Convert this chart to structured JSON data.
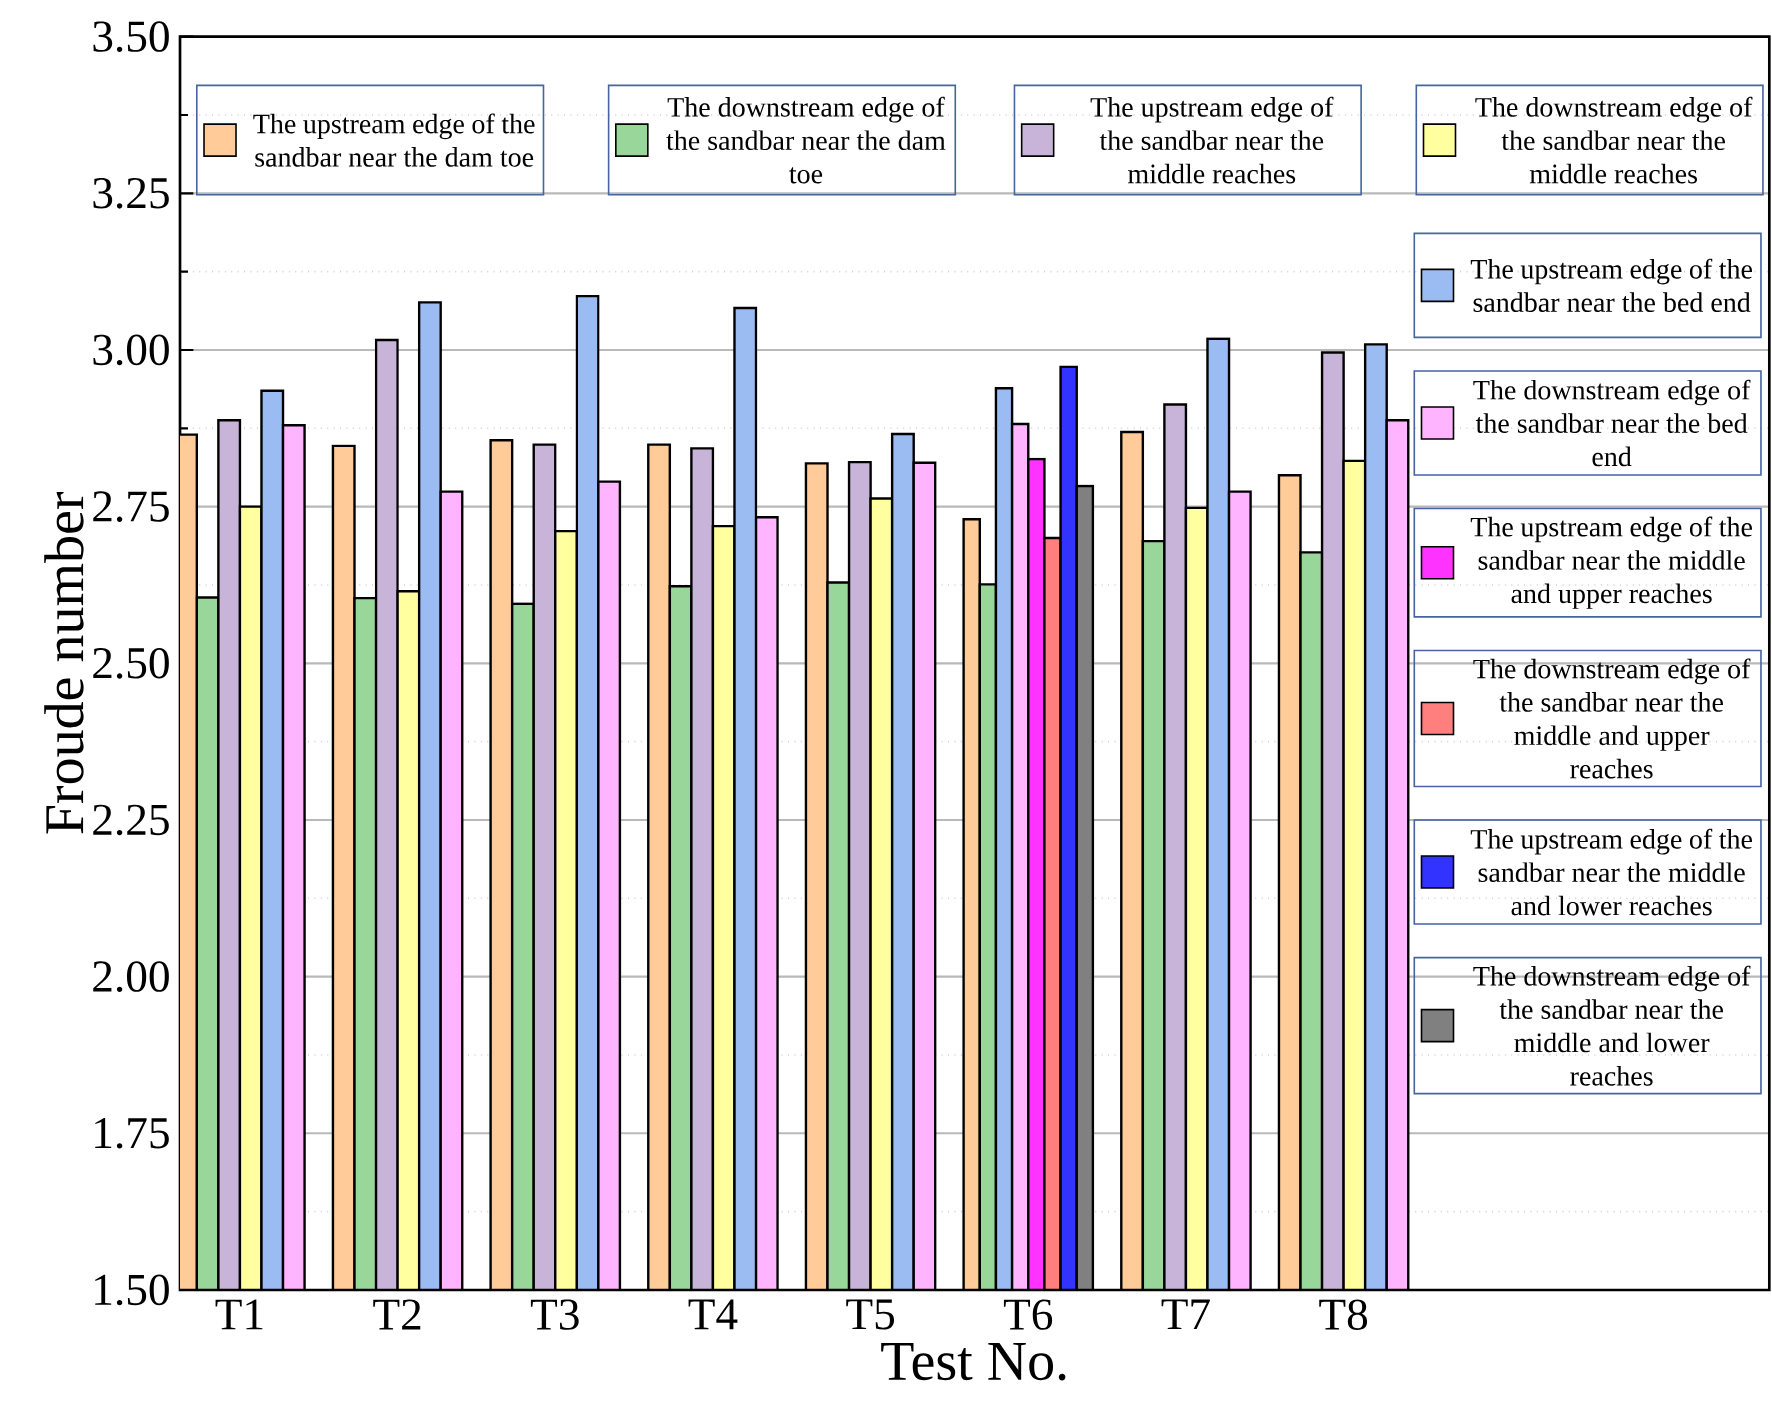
{
  "chart_data": {
    "type": "bar",
    "xlabel": "Test No.",
    "ylabel": "Froude number",
    "categories": [
      "T1",
      "T2",
      "T3",
      "T4",
      "T5",
      "T6",
      "T7",
      "T8"
    ],
    "ylim": [
      1.5,
      3.5
    ],
    "yticks": [
      {
        "value": 1.5,
        "label": "1.50"
      },
      {
        "value": 1.75,
        "label": "1.75"
      },
      {
        "value": 2.0,
        "label": "2.00"
      },
      {
        "value": 2.25,
        "label": "2.25"
      },
      {
        "value": 2.5,
        "label": "2.50"
      },
      {
        "value": 2.75,
        "label": "2.75"
      },
      {
        "value": 3.0,
        "label": "3.00"
      },
      {
        "value": 3.25,
        "label": "3.25"
      },
      {
        "value": 3.5,
        "label": "3.50"
      }
    ],
    "grid": "y",
    "legend": "top right",
    "series": [
      {
        "name": "The upstream edge of the sandbar near the dam toe",
        "color": "#ffcc99",
        "values": [
          2.865,
          2.847,
          2.856,
          2.849,
          2.819,
          2.73,
          2.869,
          2.8
        ]
      },
      {
        "name": "The downstream edge of the sandbar near the dam toe",
        "color": "#99d699",
        "values": [
          2.605,
          2.604,
          2.595,
          2.623,
          2.629,
          2.626,
          2.695,
          2.677
        ]
      },
      {
        "name": "The upstream edge of the sandbar near the middle reaches",
        "color": "#c8b4d8",
        "values": [
          2.888,
          3.016,
          2.849,
          2.843,
          2.821,
          null,
          2.913,
          2.996
        ]
      },
      {
        "name": "The downstream edge of the sandbar near the middle reaches",
        "color": "#ffffa0",
        "values": [
          2.75,
          2.615,
          2.711,
          2.719,
          2.763,
          null,
          2.748,
          2.823
        ]
      },
      {
        "name": "The upstream edge of the sandbar near the bed end",
        "color": "#9bbcf2",
        "values": [
          2.935,
          3.076,
          3.086,
          3.067,
          2.866,
          2.939,
          3.018,
          3.009
        ]
      },
      {
        "name": "The downstream edge of the sandbar near the bed end",
        "color": "#ffb4ff",
        "values": [
          2.88,
          2.774,
          2.79,
          2.733,
          2.82,
          2.882,
          2.774,
          2.888
        ]
      },
      {
        "name": "The upstream edge of the sandbar near the middle and upper reaches",
        "color": "#ff33ff",
        "values": [
          null,
          null,
          null,
          null,
          null,
          2.826,
          null,
          null
        ]
      },
      {
        "name": "The downstream edge of the sandbar near the middle and upper reaches",
        "color": "#ff7f7f",
        "values": [
          null,
          null,
          null,
          null,
          null,
          2.7,
          null,
          null
        ]
      },
      {
        "name": "The upstream edge of the sandbar near the middle and lower reaches",
        "color": "#3333ff",
        "values": [
          null,
          null,
          null,
          null,
          null,
          2.973,
          null,
          null
        ]
      },
      {
        "name": "The downstream edge of the sandbar near the middle and lower reaches",
        "color": "#808080",
        "values": [
          null,
          null,
          null,
          null,
          null,
          2.783,
          null,
          null
        ]
      }
    ]
  }
}
